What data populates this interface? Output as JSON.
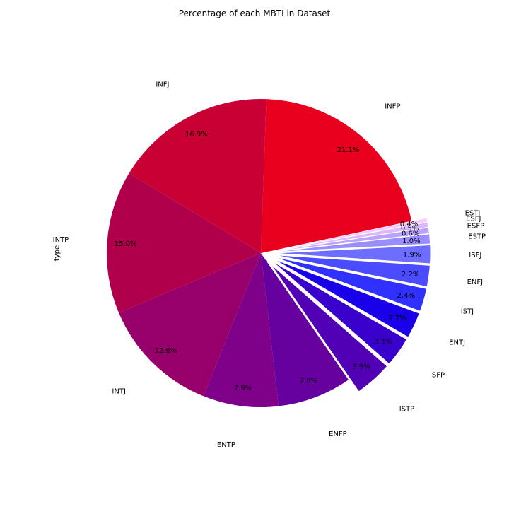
{
  "chart_data": {
    "type": "pie",
    "title": "Percentage of each MBTI in Dataset",
    "ylabel": "type",
    "start_angle_deg": 12,
    "direction": "counterclockwise",
    "slices": [
      {
        "label": "INFP",
        "pct_label": "21.1%",
        "value": 21.1,
        "color": "#e8001e",
        "exploded": false
      },
      {
        "label": "INFJ",
        "pct_label": "16.9%",
        "value": 16.9,
        "color": "#c90034",
        "exploded": false
      },
      {
        "label": "INTP",
        "pct_label": "15.0%",
        "value": 15.0,
        "color": "#b0004c",
        "exploded": false
      },
      {
        "label": "INTJ",
        "pct_label": "12.6%",
        "value": 12.6,
        "color": "#97006a",
        "exploded": false
      },
      {
        "label": "ENTP",
        "pct_label": "7.9%",
        "value": 7.9,
        "color": "#7f0089",
        "exploded": false
      },
      {
        "label": "ENFP",
        "pct_label": "7.8%",
        "value": 7.8,
        "color": "#66009e",
        "exploded": false
      },
      {
        "label": "ISTP",
        "pct_label": "3.9%",
        "value": 3.9,
        "color": "#5200b5",
        "exploded": true
      },
      {
        "label": "ISFP",
        "pct_label": "3.1%",
        "value": 3.1,
        "color": "#3a00cc",
        "exploded": true
      },
      {
        "label": "ENTJ",
        "pct_label": "2.7%",
        "value": 2.7,
        "color": "#1a00e8",
        "exploded": true
      },
      {
        "label": "ISTJ",
        "pct_label": "2.4%",
        "value": 2.4,
        "color": "#3030ff",
        "exploded": true
      },
      {
        "label": "ENFJ",
        "pct_label": "2.2%",
        "value": 2.2,
        "color": "#4b4bff",
        "exploded": true
      },
      {
        "label": "ISFJ",
        "pct_label": "1.9%",
        "value": 1.9,
        "color": "#6d6dff",
        "exploded": true
      },
      {
        "label": "ESTP",
        "pct_label": "1.0%",
        "value": 1.0,
        "color": "#9a8dff",
        "exploded": true
      },
      {
        "label": "ESFP",
        "pct_label": "0.6%",
        "value": 0.6,
        "color": "#b9a3ff",
        "exploded": true
      },
      {
        "label": "ESFJ",
        "pct_label": "0.5%",
        "value": 0.5,
        "color": "#dbb8ff",
        "exploded": true
      },
      {
        "label": "ESTJ",
        "pct_label": "0.4%",
        "value": 0.4,
        "color": "#f7c9ff",
        "exploded": true
      }
    ]
  }
}
